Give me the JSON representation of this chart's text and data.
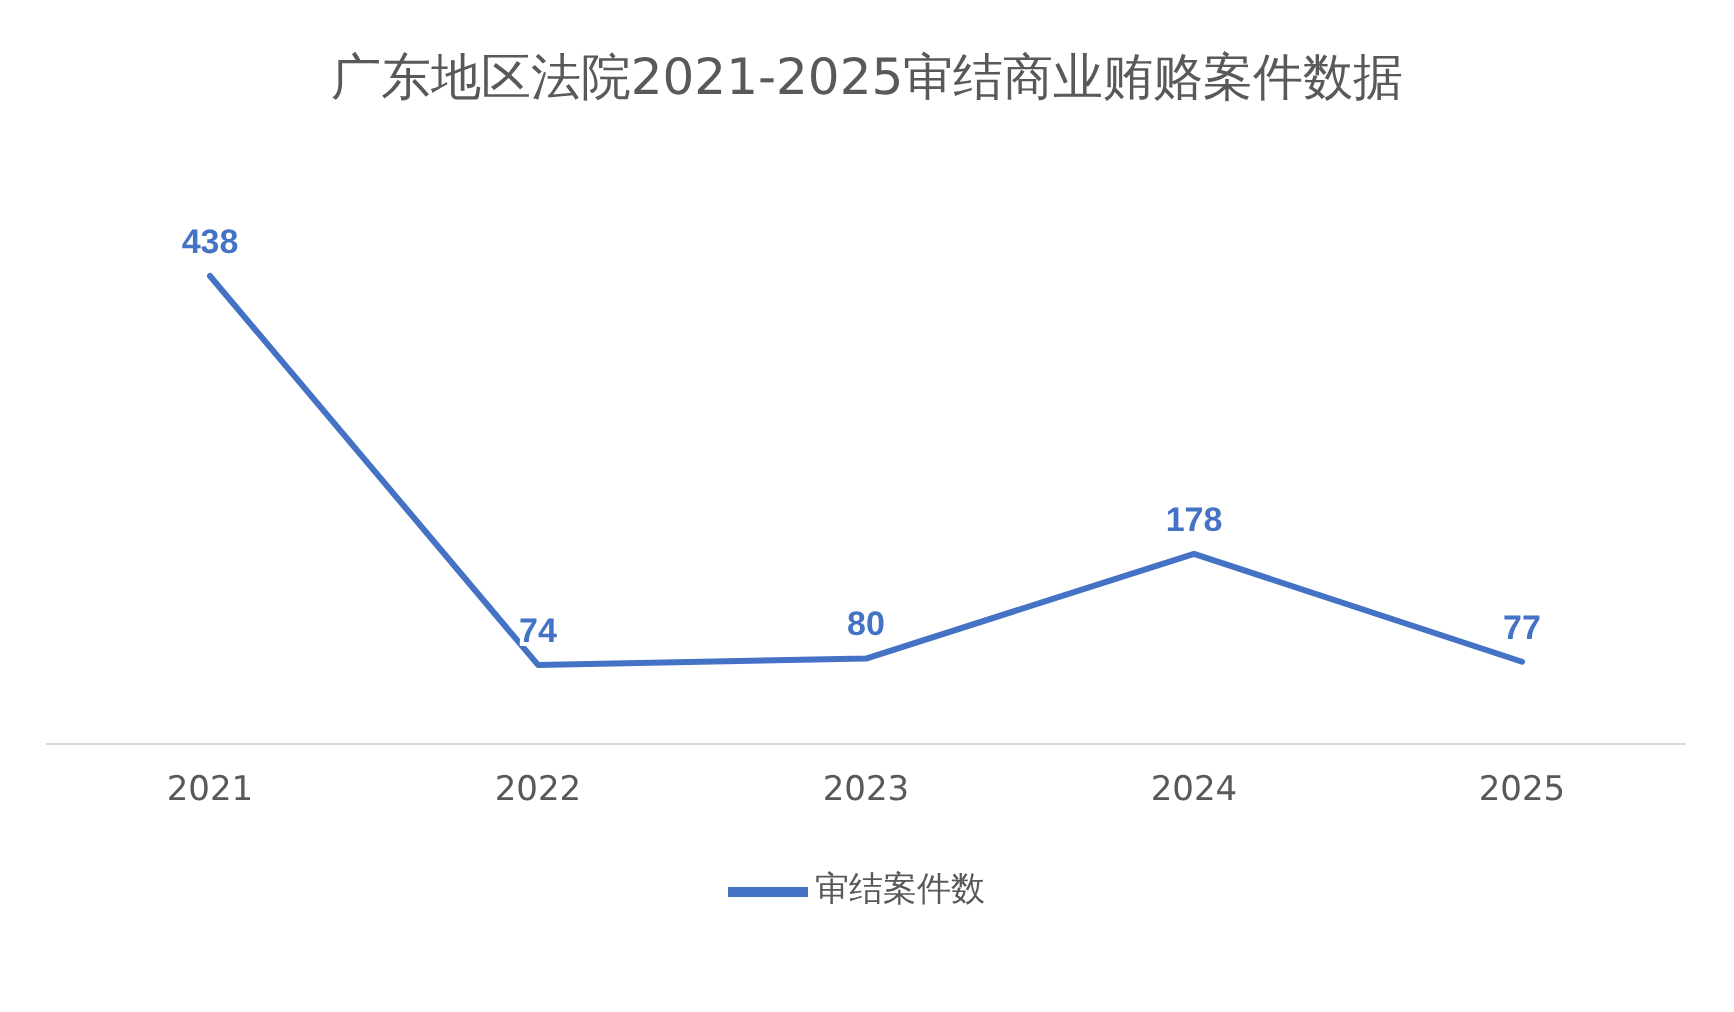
{
  "chart_data": {
    "type": "line",
    "title": "广东地区法院2021-2025审结商业贿赂案件数据",
    "categories": [
      "2021",
      "2022",
      "2023",
      "2024",
      "2025"
    ],
    "series": [
      {
        "name": "审结案件数",
        "color": "#4472c4",
        "values": [
          438,
          74,
          80,
          178,
          77
        ]
      }
    ],
    "data_labels": true,
    "legend": "bottom",
    "grid": false,
    "marker": "none",
    "line_style": "solid"
  }
}
